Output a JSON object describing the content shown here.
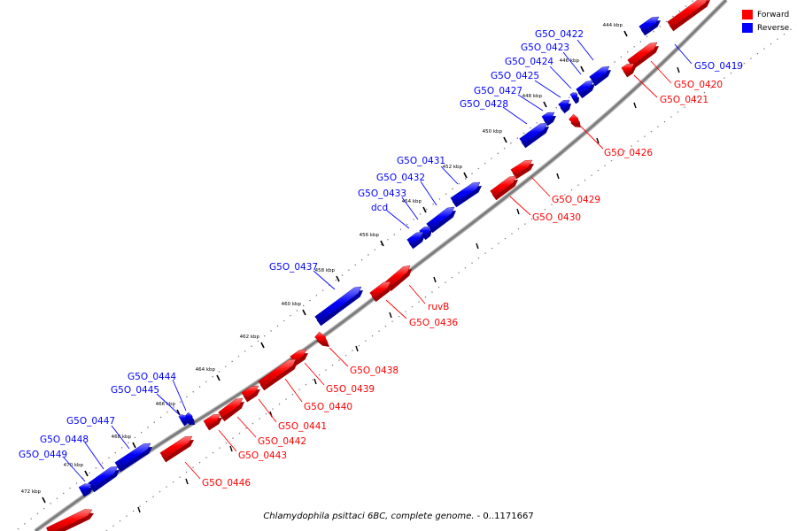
{
  "colors": {
    "forward": "#ff0000",
    "reverse": "#0000ff",
    "backbone": "#7a7a7a"
  },
  "legend": [
    {
      "name": "Forward",
      "color": "#ff0000"
    },
    {
      "name": "Reverse",
      "color": "#0000ff"
    }
  ],
  "caption": {
    "organism": "Chlamydophila psittaci 6BC, complete genome.",
    "range": " - 0..1171667"
  },
  "ticks": [
    "444 kbp",
    "446 kbp",
    "448 kbp",
    "450 kbp",
    "452 kbp",
    "454 kbp",
    "456 kbp",
    "458 kbp",
    "460 kbp",
    "462 kbp",
    "464 kbp",
    "466 kbp",
    "468 kbp",
    "470 kbp",
    "472 kbp"
  ],
  "genes": [
    {
      "label": "G5O_0419",
      "strand": "reverse"
    },
    {
      "label": "G5O_0420",
      "strand": "forward"
    },
    {
      "label": "G5O_0421",
      "strand": "forward"
    },
    {
      "label": "G5O_0422",
      "strand": "reverse"
    },
    {
      "label": "G5O_0423",
      "strand": "reverse"
    },
    {
      "label": "G5O_0424",
      "strand": "reverse"
    },
    {
      "label": "G5O_0425",
      "strand": "reverse"
    },
    {
      "label": "G5O_0426",
      "strand": "forward"
    },
    {
      "label": "G5O_0427",
      "strand": "reverse"
    },
    {
      "label": "G5O_0428",
      "strand": "reverse"
    },
    {
      "label": "G5O_0429",
      "strand": "forward"
    },
    {
      "label": "G5O_0430",
      "strand": "forward"
    },
    {
      "label": "G5O_0431",
      "strand": "reverse"
    },
    {
      "label": "G5O_0432",
      "strand": "reverse"
    },
    {
      "label": "G5O_0433",
      "strand": "reverse"
    },
    {
      "label": "dcd",
      "strand": "reverse"
    },
    {
      "label": "ruvB",
      "strand": "forward"
    },
    {
      "label": "G5O_0436",
      "strand": "forward"
    },
    {
      "label": "G5O_0437",
      "strand": "reverse"
    },
    {
      "label": "G5O_0438",
      "strand": "forward"
    },
    {
      "label": "G5O_0439",
      "strand": "forward"
    },
    {
      "label": "G5O_0440",
      "strand": "forward"
    },
    {
      "label": "G5O_0441",
      "strand": "forward"
    },
    {
      "label": "G5O_0442",
      "strand": "forward"
    },
    {
      "label": "G5O_0443",
      "strand": "forward"
    },
    {
      "label": "G5O_0444",
      "strand": "reverse"
    },
    {
      "label": "G5O_0445",
      "strand": "reverse"
    },
    {
      "label": "G5O_0446",
      "strand": "forward"
    },
    {
      "label": "G5O_0447",
      "strand": "reverse"
    },
    {
      "label": "G5O_0448",
      "strand": "reverse"
    },
    {
      "label": "G5O_0449",
      "strand": "reverse"
    }
  ]
}
